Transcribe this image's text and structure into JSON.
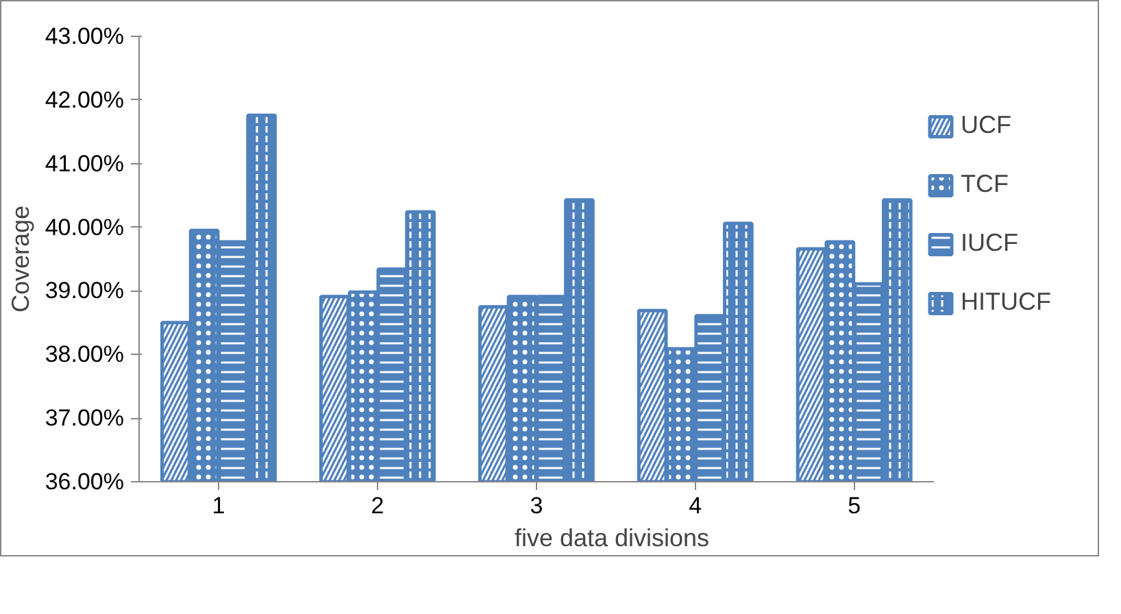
{
  "chart_data": {
    "type": "bar",
    "xlabel": "five data divisions",
    "ylabel": "Coverage",
    "categories": [
      "1",
      "2",
      "3",
      "4",
      "5"
    ],
    "series": [
      {
        "name": "UCF",
        "color": "#4f81bd",
        "values": [
          38.5,
          38.91,
          38.75,
          38.69,
          39.66
        ]
      },
      {
        "name": "TCF",
        "color": "#4f81bd",
        "values": [
          39.95,
          38.98,
          38.91,
          38.09,
          39.77
        ]
      },
      {
        "name": "IUCF",
        "color": "#4f81bd",
        "values": [
          39.77,
          39.34,
          38.91,
          38.61,
          39.11
        ]
      },
      {
        "name": "HITUCF",
        "color": "#4f81bd",
        "values": [
          41.76,
          40.24,
          40.43,
          40.06,
          40.43
        ]
      }
    ],
    "ylim": [
      36,
      43
    ],
    "yticks": [
      {
        "value": 36,
        "label": "36.00%"
      },
      {
        "value": 37,
        "label": "37.00%"
      },
      {
        "value": 38,
        "label": "38.00%"
      },
      {
        "value": 39,
        "label": "39.00%"
      },
      {
        "value": 40,
        "label": "40.00%"
      },
      {
        "value": 41,
        "label": "41.00%"
      },
      {
        "value": 42,
        "label": "42.00%"
      },
      {
        "value": 43,
        "label": "43.00%"
      }
    ],
    "grid": false,
    "legend": "right"
  }
}
